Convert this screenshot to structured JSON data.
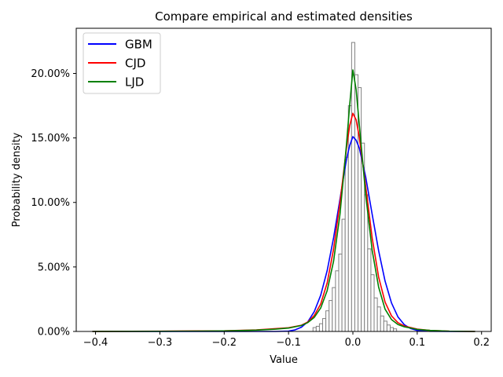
{
  "chart_data": {
    "type": "histogram-with-density-lines",
    "title": "Compare empirical and estimated densities",
    "xlabel": "Value",
    "ylabel": "Probability density",
    "xlim": [
      -0.43,
      0.215
    ],
    "ylim": [
      0,
      0.235
    ],
    "x_ticks": [
      -0.4,
      -0.3,
      -0.2,
      -0.1,
      0.0,
      0.1,
      0.2
    ],
    "x_tick_labels": [
      "−0.4",
      "−0.3",
      "−0.2",
      "−0.1",
      "0.0",
      "0.1",
      "0.2"
    ],
    "y_ticks": [
      0,
      0.05,
      0.1,
      0.15,
      0.2
    ],
    "y_tick_labels": [
      "0.00%",
      "5.00%",
      "10.00%",
      "15.00%",
      "20.00%"
    ],
    "legend_position": "top-left",
    "histogram": {
      "name": "Empirical",
      "edge_color": "#808080",
      "face_color": "#ffffff",
      "bins": [
        {
          "x0": -0.062,
          "x1": -0.057,
          "y": 0.003
        },
        {
          "x0": -0.057,
          "x1": -0.052,
          "y": 0.004
        },
        {
          "x0": -0.052,
          "x1": -0.047,
          "y": 0.006
        },
        {
          "x0": -0.047,
          "x1": -0.042,
          "y": 0.01
        },
        {
          "x0": -0.042,
          "x1": -0.037,
          "y": 0.016
        },
        {
          "x0": -0.037,
          "x1": -0.032,
          "y": 0.024
        },
        {
          "x0": -0.032,
          "x1": -0.027,
          "y": 0.034
        },
        {
          "x0": -0.027,
          "x1": -0.022,
          "y": 0.047
        },
        {
          "x0": -0.022,
          "x1": -0.017,
          "y": 0.06
        },
        {
          "x0": -0.017,
          "x1": -0.012,
          "y": 0.087
        },
        {
          "x0": -0.012,
          "x1": -0.007,
          "y": 0.135
        },
        {
          "x0": -0.007,
          "x1": -0.002,
          "y": 0.175
        },
        {
          "x0": -0.002,
          "x1": 0.003,
          "y": 0.224
        },
        {
          "x0": 0.003,
          "x1": 0.008,
          "y": 0.199
        },
        {
          "x0": 0.008,
          "x1": 0.013,
          "y": 0.189
        },
        {
          "x0": 0.013,
          "x1": 0.018,
          "y": 0.146
        },
        {
          "x0": 0.018,
          "x1": 0.023,
          "y": 0.106
        },
        {
          "x0": 0.023,
          "x1": 0.028,
          "y": 0.064
        },
        {
          "x0": 0.028,
          "x1": 0.033,
          "y": 0.044
        },
        {
          "x0": 0.033,
          "x1": 0.038,
          "y": 0.026
        },
        {
          "x0": 0.038,
          "x1": 0.043,
          "y": 0.019
        },
        {
          "x0": 0.043,
          "x1": 0.048,
          "y": 0.012
        },
        {
          "x0": 0.048,
          "x1": 0.053,
          "y": 0.008
        },
        {
          "x0": 0.053,
          "x1": 0.058,
          "y": 0.005
        },
        {
          "x0": 0.058,
          "x1": 0.063,
          "y": 0.003
        },
        {
          "x0": 0.063,
          "x1": 0.068,
          "y": 0.002
        }
      ]
    },
    "series": [
      {
        "name": "GBM",
        "color": "#0000ff",
        "x": [
          -0.405,
          -0.3,
          -0.2,
          -0.12,
          -0.1,
          -0.09,
          -0.08,
          -0.07,
          -0.06,
          -0.05,
          -0.04,
          -0.03,
          -0.02,
          -0.01,
          -0.005,
          0.0,
          0.005,
          0.01,
          0.02,
          0.03,
          0.04,
          0.05,
          0.06,
          0.07,
          0.08,
          0.09,
          0.1,
          0.12,
          0.15,
          0.19
        ],
        "y": [
          0,
          0,
          0,
          0.0,
          0.0003,
          0.0012,
          0.0033,
          0.0075,
          0.0154,
          0.0281,
          0.0471,
          0.0726,
          0.1027,
          0.1333,
          0.1441,
          0.151,
          0.1483,
          0.1421,
          0.1195,
          0.0907,
          0.0626,
          0.0391,
          0.0221,
          0.0113,
          0.0052,
          0.0022,
          0.0008,
          0.0001,
          0,
          0
        ]
      },
      {
        "name": "CJD",
        "color": "#ff0000",
        "x": [
          -0.405,
          -0.3,
          -0.2,
          -0.15,
          -0.12,
          -0.1,
          -0.08,
          -0.07,
          -0.06,
          -0.05,
          -0.04,
          -0.03,
          -0.02,
          -0.01,
          -0.005,
          0.0,
          0.005,
          0.01,
          0.02,
          0.03,
          0.04,
          0.05,
          0.06,
          0.07,
          0.08,
          0.1,
          0.12,
          0.15,
          0.19
        ],
        "y": [
          0,
          0.0002,
          0.0005,
          0.0012,
          0.0022,
          0.0029,
          0.0048,
          0.0073,
          0.0124,
          0.0213,
          0.0376,
          0.0638,
          0.1001,
          0.1419,
          0.1595,
          0.1691,
          0.1641,
          0.1506,
          0.1121,
          0.0724,
          0.0422,
          0.0228,
          0.0121,
          0.0068,
          0.0042,
          0.0018,
          0.0008,
          0.0002,
          0
        ]
      },
      {
        "name": "LJD",
        "color": "#008000",
        "x": [
          -0.405,
          -0.3,
          -0.2,
          -0.15,
          -0.12,
          -0.1,
          -0.08,
          -0.07,
          -0.06,
          -0.05,
          -0.04,
          -0.03,
          -0.02,
          -0.01,
          -0.005,
          0.0,
          0.005,
          0.01,
          0.02,
          0.03,
          0.04,
          0.05,
          0.06,
          0.07,
          0.08,
          0.1,
          0.12,
          0.15,
          0.19
        ],
        "y": [
          0,
          0.0001,
          0.0004,
          0.001,
          0.0018,
          0.0026,
          0.0046,
          0.0069,
          0.0109,
          0.0182,
          0.0316,
          0.0545,
          0.0911,
          0.1446,
          0.1755,
          0.2027,
          0.1876,
          0.1601,
          0.1056,
          0.0628,
          0.0344,
          0.0173,
          0.0092,
          0.0054,
          0.0036,
          0.0016,
          0.0008,
          0.0002,
          0
        ]
      }
    ]
  }
}
